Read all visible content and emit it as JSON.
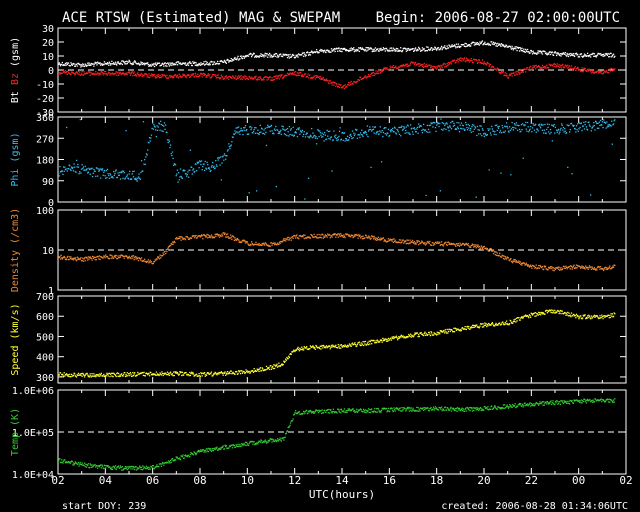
{
  "header": {
    "title": "ACE RTSW (Estimated) MAG & SWEPAM",
    "begin": "Begin: 2006-08-27 02:00:00UTC"
  },
  "footer": {
    "start": "start DOY: 239",
    "created": "created: 2006-08-28 01:34:06UTC"
  },
  "colors": {
    "background": "#000000",
    "axes": "#ffffff",
    "bt": "#ffffff",
    "bz": "#ff2020",
    "phi": "#33bbee",
    "density": "#ee8833",
    "speed": "#ffff33",
    "temp": "#33cc33"
  },
  "chart_data": {
    "type": "line",
    "xlabel": "UTC(hours)",
    "x_ticks": [
      "02",
      "04",
      "06",
      "08",
      "10",
      "12",
      "14",
      "16",
      "18",
      "20",
      "22",
      "00",
      "02"
    ],
    "xlim_hours": [
      2,
      26
    ],
    "panels": [
      {
        "id": "mag",
        "ylabel_parts": [
          {
            "text": "Bt",
            "color": "#ffffff"
          },
          {
            "text": " Bz",
            "color": "#ff2020"
          },
          {
            "text": " (gsm)",
            "color": "#ffffff"
          }
        ],
        "scale": "linear",
        "ylim": [
          -30,
          30
        ],
        "y_ticks": [
          "-30",
          "-20",
          "-10",
          "0",
          "10",
          "20",
          "30"
        ],
        "y_tick_values": [
          -30,
          -20,
          -10,
          0,
          10,
          20,
          30
        ],
        "dashed_ref": 0,
        "series": [
          {
            "name": "Bt",
            "color": "#ffffff",
            "x": [
              2,
              3,
              4,
              5,
              6,
              7,
              8,
              9,
              10,
              11,
              12,
              13,
              14,
              15,
              16,
              17,
              18,
              19,
              20,
              21,
              22,
              23,
              24,
              25,
              25.5
            ],
            "y": [
              5,
              4,
              5,
              6,
              4,
              5,
              5,
              6,
              11,
              11,
              10,
              14,
              15,
              15,
              15,
              15,
              16,
              18,
              20,
              17,
              13,
              12,
              11,
              11,
              11
            ]
          },
          {
            "name": "Bz",
            "color": "#ff2020",
            "x": [
              2,
              3,
              4,
              5,
              6,
              7,
              8,
              9,
              10,
              11,
              12,
              13,
              14,
              15,
              16,
              17,
              18,
              19,
              20,
              21,
              22,
              23,
              24,
              25,
              25.5
            ],
            "y": [
              -1,
              -2,
              -2,
              -2,
              -4,
              -4,
              -3,
              -5,
              -5,
              -6,
              -2,
              -5,
              -12,
              -4,
              2,
              5,
              2,
              8,
              6,
              -4,
              2,
              4,
              1,
              -2,
              2
            ]
          }
        ]
      },
      {
        "id": "phi",
        "ylabel_parts": [
          {
            "text": "Phi (gsm)",
            "color": "#33bbee"
          }
        ],
        "scale": "linear",
        "ylim": [
          0,
          360
        ],
        "y_ticks": [
          "0",
          "90",
          "180",
          "270",
          "360"
        ],
        "y_tick_values": [
          0,
          90,
          180,
          270,
          360
        ],
        "series": [
          {
            "name": "Phi",
            "color": "#33bbee",
            "x": [
              2,
              2.5,
              3,
              4,
              5,
              5.5,
              6,
              6.5,
              7,
              7.5,
              8,
              8.5,
              9,
              9.5,
              10,
              11,
              12,
              13,
              14,
              15,
              16,
              17,
              18,
              19,
              20,
              21,
              22,
              23,
              24,
              25,
              25.5
            ],
            "y": [
              130,
              150,
              140,
              120,
              115,
              110,
              330,
              320,
              120,
              125,
              160,
              150,
              190,
              300,
              310,
              310,
              300,
              290,
              280,
              300,
              300,
              310,
              320,
              330,
              300,
              320,
              320,
              310,
              320,
              330,
              335
            ]
          }
        ]
      },
      {
        "id": "density",
        "ylabel_parts": [
          {
            "text": "Density (/cm3)",
            "color": "#ee8833"
          }
        ],
        "scale": "log",
        "ylim": [
          1,
          100
        ],
        "y_ticks": [
          "1",
          "10",
          "100"
        ],
        "y_tick_values": [
          1,
          10,
          100
        ],
        "dashed_ref": 10,
        "series": [
          {
            "name": "Density",
            "color": "#ee8833",
            "x": [
              2,
              3,
              4,
              5,
              6,
              6.5,
              7,
              8,
              9,
              10,
              11,
              12,
              13,
              14,
              15,
              16,
              17,
              18,
              19,
              20,
              21,
              22,
              23,
              24,
              25,
              25.5
            ],
            "y": [
              7,
              6,
              7,
              7,
              5,
              9,
              20,
              22,
              25,
              15,
              14,
              22,
              23,
              24,
              22,
              18,
              16,
              15,
              14,
              12,
              6,
              4,
              3.5,
              4,
              3.5,
              4
            ]
          }
        ]
      },
      {
        "id": "speed",
        "ylabel_parts": [
          {
            "text": "Speed (km/s)",
            "color": "#ffff33"
          }
        ],
        "scale": "linear",
        "ylim": [
          270,
          700
        ],
        "y_ticks": [
          "300",
          "400",
          "500",
          "600",
          "700"
        ],
        "y_tick_values": [
          300,
          400,
          500,
          600,
          700
        ],
        "series": [
          {
            "name": "Speed",
            "color": "#ffff33",
            "x": [
              2,
              3,
              4,
              5,
              6,
              7,
              8,
              9,
              10,
              11,
              11.5,
              12,
              13,
              14,
              15,
              16,
              17,
              18,
              19,
              20,
              21,
              22,
              23,
              24,
              25,
              25.5
            ],
            "y": [
              315,
              312,
              312,
              315,
              318,
              320,
              315,
              320,
              330,
              350,
              370,
              440,
              450,
              455,
              470,
              490,
              510,
              520,
              540,
              560,
              570,
              610,
              630,
              600,
              600,
              610
            ]
          }
        ]
      },
      {
        "id": "temp",
        "ylabel_parts": [
          {
            "text": "Temp (K)",
            "color": "#33cc33"
          }
        ],
        "scale": "log",
        "ylim": [
          10000,
          1000000
        ],
        "y_ticks": [
          "1.0E+04",
          "1.0E+05",
          "1.0E+06"
        ],
        "y_tick_values": [
          10000,
          100000,
          1000000
        ],
        "dashed_ref": 100000,
        "series": [
          {
            "name": "Temp",
            "color": "#33cc33",
            "x": [
              2,
              3,
              4,
              5,
              6,
              7,
              8,
              9,
              10,
              11,
              11.5,
              12,
              13,
              14,
              15,
              16,
              17,
              18,
              19,
              20,
              21,
              22,
              23,
              24,
              25,
              25.5
            ],
            "y": [
              22000,
              17000,
              15000,
              14000,
              15000,
              24000,
              35000,
              45000,
              55000,
              65000,
              70000,
              300000,
              320000,
              330000,
              330000,
              350000,
              360000,
              370000,
              350000,
              380000,
              420000,
              480000,
              520000,
              550000,
              600000,
              580000
            ]
          }
        ]
      }
    ]
  }
}
